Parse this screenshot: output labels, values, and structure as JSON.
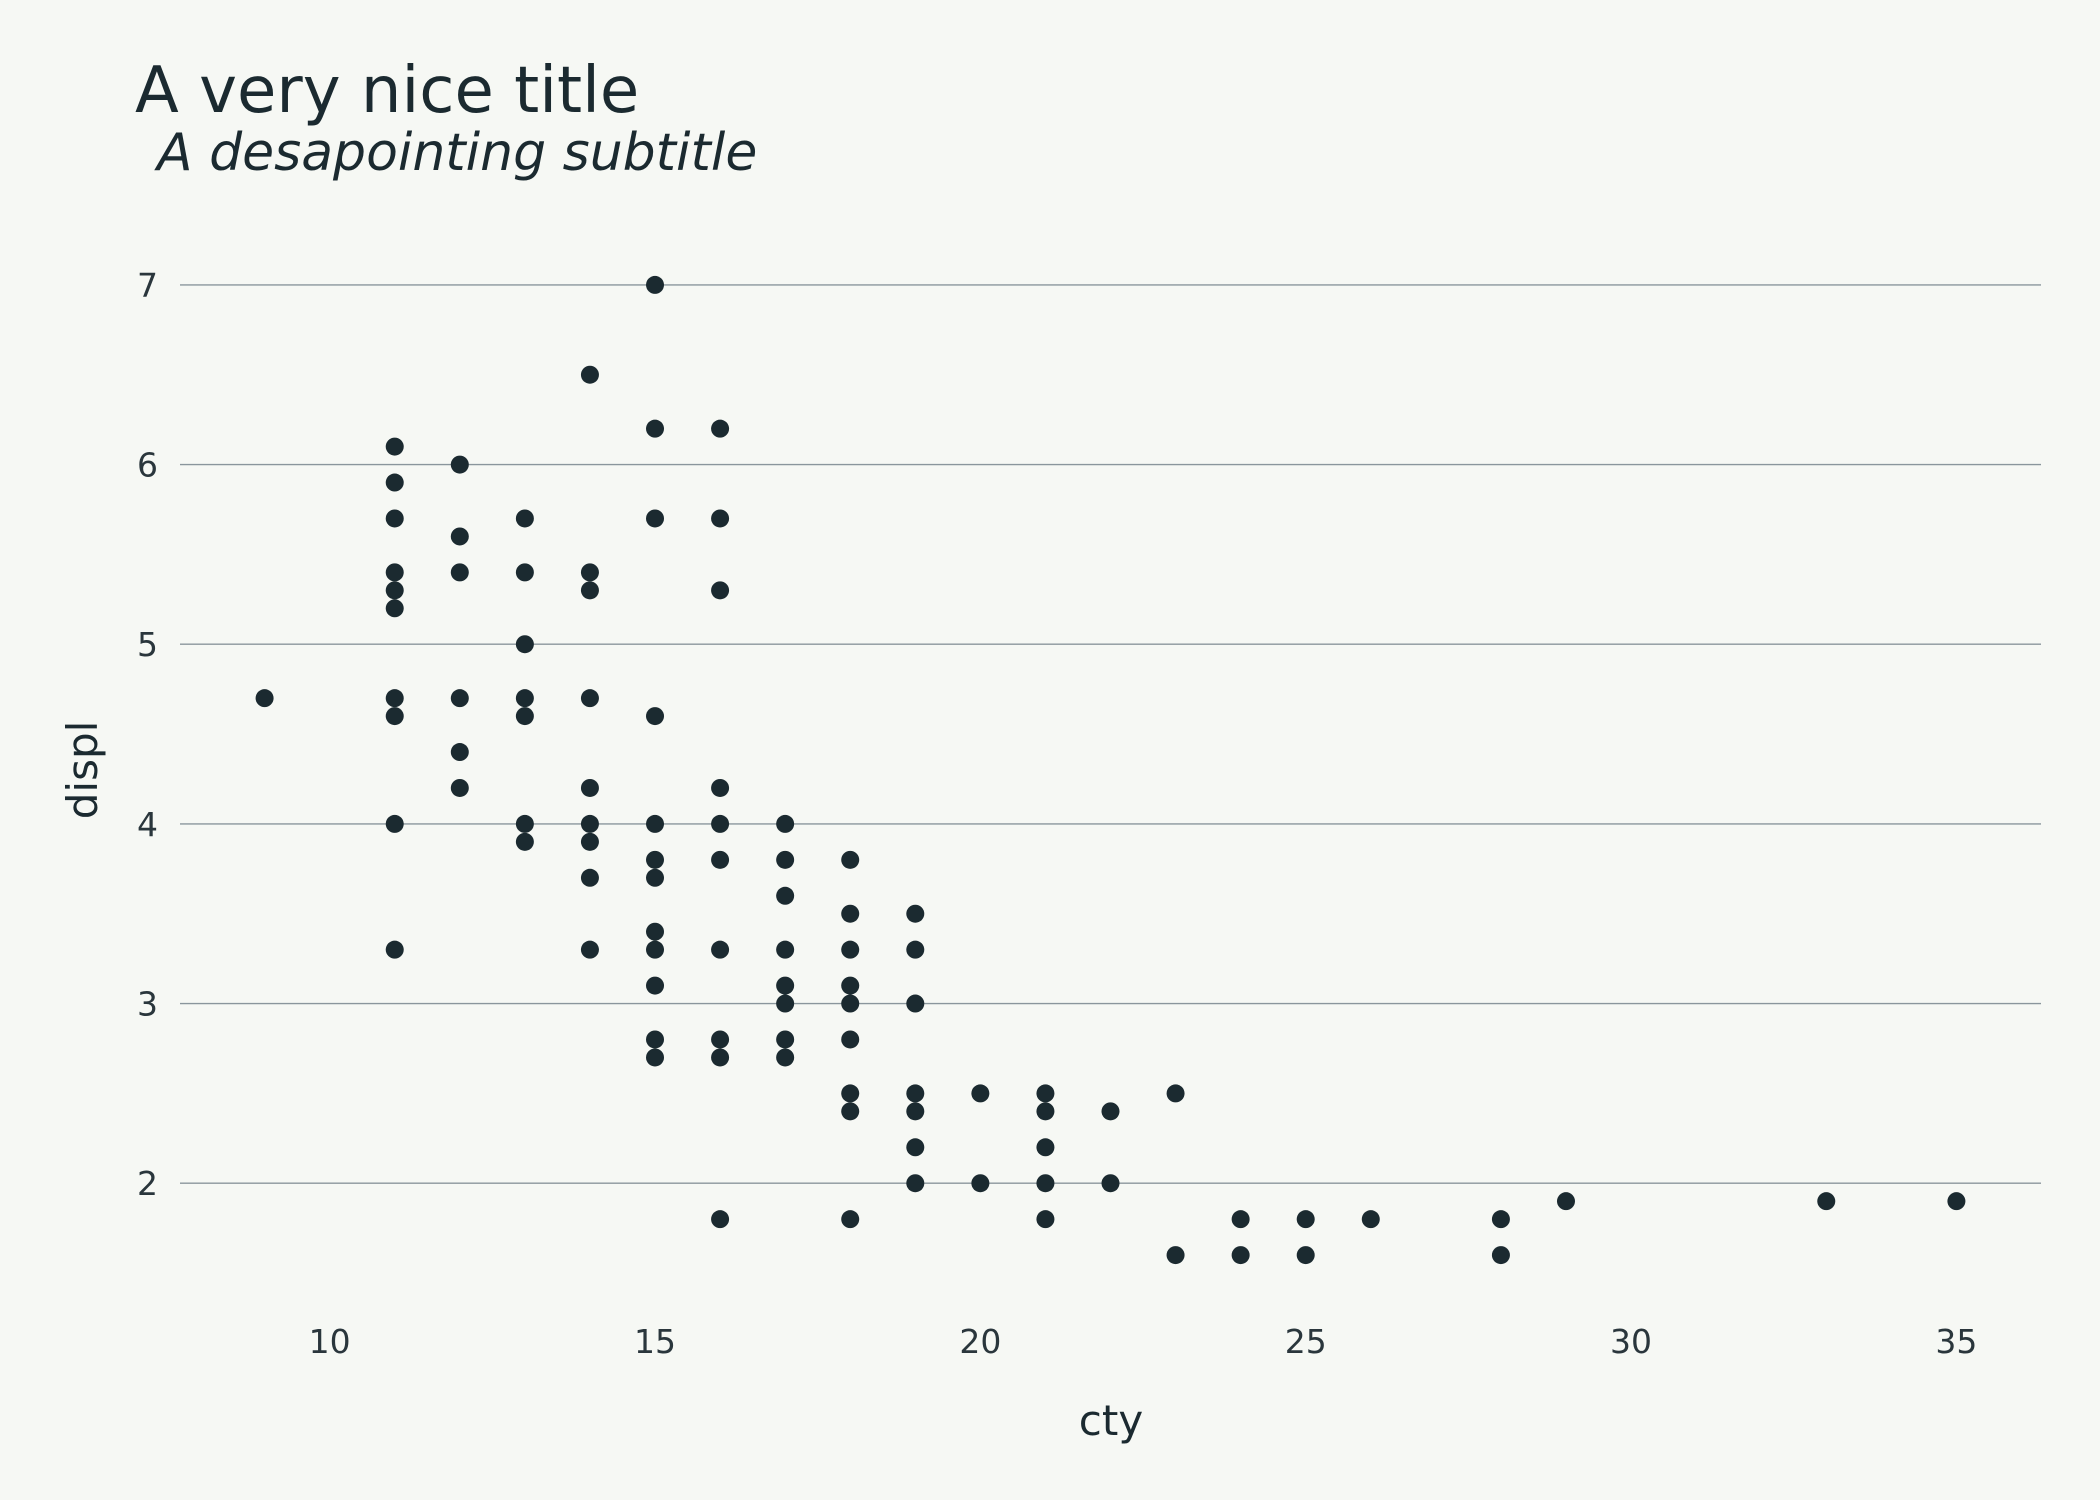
{
  "chart_data": {
    "type": "scatter",
    "title": "A very nice title",
    "subtitle": "A desapointing subtitle",
    "xlabel": "cty",
    "ylabel": "displ",
    "xlim": [
      7.7,
      36.3
    ],
    "ylim": [
      1.35,
      7.25
    ],
    "xticks": [
      10,
      15,
      20,
      25,
      30,
      35
    ],
    "yticks": [
      2,
      3,
      4,
      5,
      6,
      7
    ],
    "grid": "horizontal major only",
    "colors": {
      "background": "#f6f8f4",
      "point": "#1b2a30",
      "grid": "#8a969c",
      "text": "#1b2a30"
    },
    "points": [
      [
        9,
        4.7
      ],
      [
        11,
        6.1
      ],
      [
        11,
        5.9
      ],
      [
        11,
        5.7
      ],
      [
        11,
        5.4
      ],
      [
        11,
        5.3
      ],
      [
        11,
        5.2
      ],
      [
        11,
        4.7
      ],
      [
        11,
        4.6
      ],
      [
        11,
        4.0
      ],
      [
        11,
        3.3
      ],
      [
        12,
        6.0
      ],
      [
        12,
        5.6
      ],
      [
        12,
        5.4
      ],
      [
        12,
        4.7
      ],
      [
        12,
        4.4
      ],
      [
        12,
        4.2
      ],
      [
        13,
        5.7
      ],
      [
        13,
        5.4
      ],
      [
        13,
        5.0
      ],
      [
        13,
        4.7
      ],
      [
        13,
        4.6
      ],
      [
        13,
        4.0
      ],
      [
        13,
        3.9
      ],
      [
        14,
        6.5
      ],
      [
        14,
        5.4
      ],
      [
        14,
        5.3
      ],
      [
        14,
        4.7
      ],
      [
        14,
        4.2
      ],
      [
        14,
        4.0
      ],
      [
        14,
        3.9
      ],
      [
        14,
        3.7
      ],
      [
        14,
        3.3
      ],
      [
        15,
        7.0
      ],
      [
        15,
        6.2
      ],
      [
        15,
        5.7
      ],
      [
        15,
        4.6
      ],
      [
        15,
        4.0
      ],
      [
        15,
        3.8
      ],
      [
        15,
        3.7
      ],
      [
        15,
        3.4
      ],
      [
        15,
        3.3
      ],
      [
        15,
        3.1
      ],
      [
        15,
        2.8
      ],
      [
        15,
        2.7
      ],
      [
        16,
        6.2
      ],
      [
        16,
        5.7
      ],
      [
        16,
        5.3
      ],
      [
        16,
        4.2
      ],
      [
        16,
        4.0
      ],
      [
        16,
        3.8
      ],
      [
        16,
        3.3
      ],
      [
        16,
        2.8
      ],
      [
        16,
        2.7
      ],
      [
        16,
        1.8
      ],
      [
        17,
        4.0
      ],
      [
        17,
        3.8
      ],
      [
        17,
        3.6
      ],
      [
        17,
        3.3
      ],
      [
        17,
        3.1
      ],
      [
        17,
        3.0
      ],
      [
        17,
        2.8
      ],
      [
        17,
        2.7
      ],
      [
        18,
        3.8
      ],
      [
        18,
        3.5
      ],
      [
        18,
        3.3
      ],
      [
        18,
        3.1
      ],
      [
        18,
        3.0
      ],
      [
        18,
        2.8
      ],
      [
        18,
        2.5
      ],
      [
        18,
        2.4
      ],
      [
        18,
        1.8
      ],
      [
        19,
        3.5
      ],
      [
        19,
        3.3
      ],
      [
        19,
        3.0
      ],
      [
        19,
        2.5
      ],
      [
        19,
        2.4
      ],
      [
        19,
        2.2
      ],
      [
        19,
        2.0
      ],
      [
        20,
        2.5
      ],
      [
        20,
        2.0
      ],
      [
        21,
        2.5
      ],
      [
        21,
        2.4
      ],
      [
        21,
        2.2
      ],
      [
        21,
        2.0
      ],
      [
        21,
        1.8
      ],
      [
        22,
        2.4
      ],
      [
        22,
        2.0
      ],
      [
        23,
        2.5
      ],
      [
        23,
        1.6
      ],
      [
        24,
        1.8
      ],
      [
        24,
        1.6
      ],
      [
        25,
        1.8
      ],
      [
        25,
        1.6
      ],
      [
        26,
        1.8
      ],
      [
        28,
        1.8
      ],
      [
        28,
        1.6
      ],
      [
        29,
        1.9
      ],
      [
        33,
        1.9
      ],
      [
        35,
        1.9
      ]
    ]
  }
}
